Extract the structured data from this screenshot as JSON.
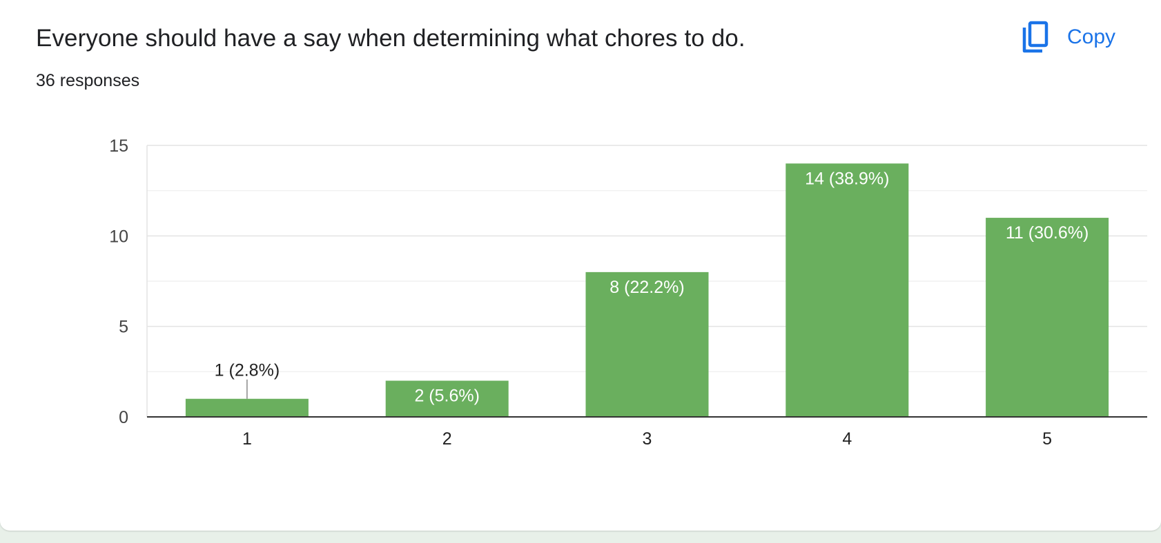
{
  "header": {
    "question": "Everyone should have a say when determining what chores to do.",
    "responses": "36 responses",
    "copy_label": "Copy"
  },
  "icons": {
    "copy": "copy-icon"
  },
  "colors": {
    "bar": "#6aaf5e",
    "accent": "#1a73e8"
  },
  "chart_data": {
    "type": "bar",
    "categories": [
      "1",
      "2",
      "3",
      "4",
      "5"
    ],
    "values": [
      1,
      2,
      8,
      14,
      11
    ],
    "data_labels": [
      "1 (2.8%)",
      "2 (5.6%)",
      "8 (22.2%)",
      "14 (38.9%)",
      "11 (30.6%)"
    ],
    "ylim": [
      0,
      15
    ],
    "yticks": [
      "0",
      "5",
      "10",
      "15"
    ],
    "grid": true
  }
}
